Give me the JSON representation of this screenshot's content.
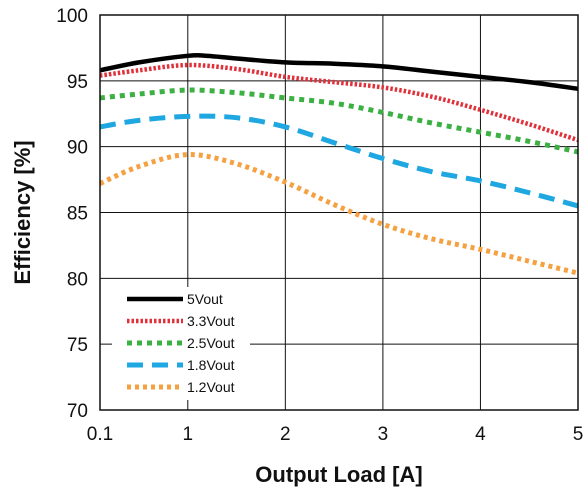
{
  "chart_data": {
    "type": "line",
    "title": "",
    "xlabel": "Output Load [A]",
    "ylabel": "Efficiency [%]",
    "xticks": [
      "0.1",
      "1",
      "2",
      "3",
      "4",
      "5"
    ],
    "yticks": [
      "70",
      "75",
      "80",
      "85",
      "90",
      "95",
      "100"
    ],
    "xlim": [
      0.1,
      5
    ],
    "ylim": [
      70,
      100
    ],
    "grid": true,
    "legend": "lower-left",
    "series": [
      {
        "name": "5Vout",
        "color": "#000000",
        "style": "solid",
        "x": [
          0.1,
          0.5,
          1.0,
          1.2,
          1.5,
          2.0,
          2.5,
          3.0,
          3.5,
          4.0,
          4.5,
          5.0
        ],
        "y": [
          95.8,
          96.4,
          96.9,
          96.9,
          96.7,
          96.4,
          96.3,
          96.1,
          95.7,
          95.3,
          94.9,
          94.4
        ]
      },
      {
        "name": "3.3Vout",
        "color": "#e0303a",
        "style": "dotted",
        "x": [
          0.1,
          0.5,
          1.0,
          1.5,
          2.0,
          2.5,
          3.0,
          3.5,
          4.0,
          4.5,
          5.0
        ],
        "y": [
          95.4,
          95.8,
          96.2,
          95.9,
          95.3,
          94.9,
          94.5,
          93.8,
          92.8,
          91.7,
          90.5
        ]
      },
      {
        "name": "2.5Vout",
        "color": "#3cb043",
        "style": "dashed-short",
        "x": [
          0.1,
          0.5,
          1.0,
          1.5,
          2.0,
          2.5,
          3.0,
          3.5,
          4.0,
          4.5,
          5.0
        ],
        "y": [
          93.7,
          94.0,
          94.3,
          94.1,
          93.7,
          93.3,
          92.6,
          91.8,
          91.1,
          90.4,
          89.6
        ]
      },
      {
        "name": "1.8Vout",
        "color": "#1ea7e1",
        "style": "dashed-long",
        "x": [
          0.1,
          0.5,
          1.0,
          1.5,
          2.0,
          2.5,
          3.0,
          3.5,
          4.0,
          4.5,
          5.0
        ],
        "y": [
          91.5,
          92.0,
          92.3,
          92.2,
          91.5,
          90.3,
          89.1,
          88.1,
          87.4,
          86.5,
          85.5
        ]
      },
      {
        "name": "1.2Vout",
        "color": "#f5a142",
        "style": "dotted-thick",
        "x": [
          0.1,
          0.5,
          1.0,
          1.5,
          2.0,
          2.5,
          3.0,
          3.5,
          4.0,
          4.5,
          5.0
        ],
        "y": [
          87.2,
          88.5,
          89.4,
          88.7,
          87.3,
          85.6,
          84.1,
          83.0,
          82.2,
          81.3,
          80.4
        ]
      }
    ]
  }
}
